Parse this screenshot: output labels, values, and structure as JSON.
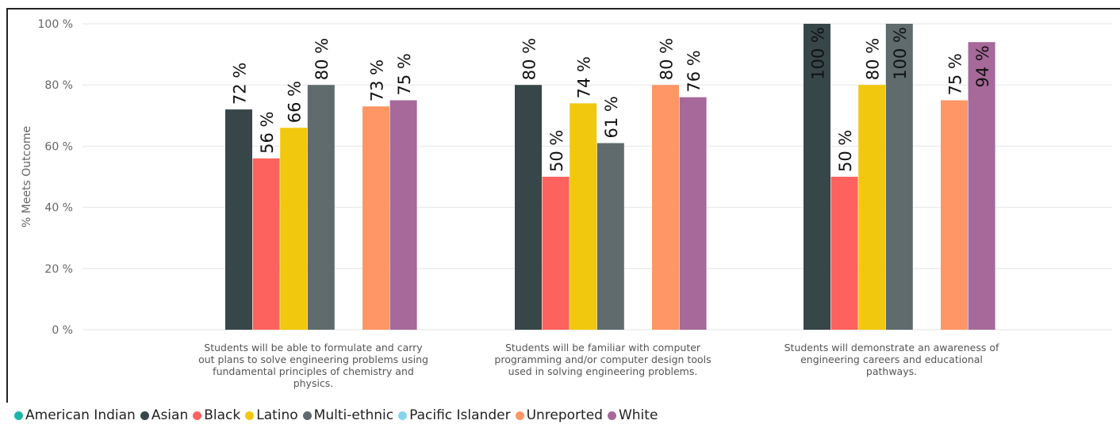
{
  "chart_data": {
    "type": "bar",
    "ylabel": "% Meets Outcome",
    "ylim": [
      0,
      100
    ],
    "yticks": [
      "0 %",
      "20 %",
      "40 %",
      "60 %",
      "80 %",
      "100 %"
    ],
    "grid": true,
    "legend_position": "bottom",
    "categories": [
      "Students will be able to formulate and carry out plans to solve engineering problems using fundamental principles of chemistry and physics.",
      "Students will be familiar with computer programming and/or computer design tools used in solving engineering problems.",
      "Students will demonstrate an awareness of engineering careers and educational pathways."
    ],
    "category_lines": [
      [
        "Students will be able to formulate and carry",
        "out plans to solve engineering problems using",
        "fundamental principles of chemistry and",
        "physics."
      ],
      [
        "Students will be familiar with computer",
        "programming and/or computer design tools",
        "used in solving engineering problems."
      ],
      [
        "Students will demonstrate an awareness of",
        "engineering careers and educational",
        "pathways."
      ]
    ],
    "series": [
      {
        "name": "American Indian",
        "color": "#1fb3a8",
        "values": [
          null,
          null,
          null
        ]
      },
      {
        "name": "Asian",
        "color": "#374649",
        "values": [
          72,
          80,
          100
        ],
        "labels": [
          "72 %",
          "80 %",
          "100 %"
        ]
      },
      {
        "name": "Black",
        "color": "#fd625e",
        "values": [
          56,
          50,
          50
        ],
        "labels": [
          "56 %",
          "50 %",
          "50 %"
        ]
      },
      {
        "name": "Latino",
        "color": "#f2c80f",
        "values": [
          66,
          74,
          80
        ],
        "labels": [
          "66 %",
          "74 %",
          "80 %"
        ]
      },
      {
        "name": "Multi-ethnic",
        "color": "#5f6b6d",
        "values": [
          80,
          61,
          100
        ],
        "labels": [
          "80 %",
          "61 %",
          "100 %"
        ]
      },
      {
        "name": "Pacific Islander",
        "color": "#8ad4eb",
        "values": [
          null,
          null,
          null
        ]
      },
      {
        "name": "Unreported",
        "color": "#fe9666",
        "values": [
          73,
          80,
          75
        ],
        "labels": [
          "73 %",
          "80 %",
          "75 %"
        ]
      },
      {
        "name": "White",
        "color": "#a66999",
        "values": [
          75,
          76,
          94
        ],
        "labels": [
          "75 %",
          "76 %",
          "94 %"
        ]
      }
    ]
  }
}
